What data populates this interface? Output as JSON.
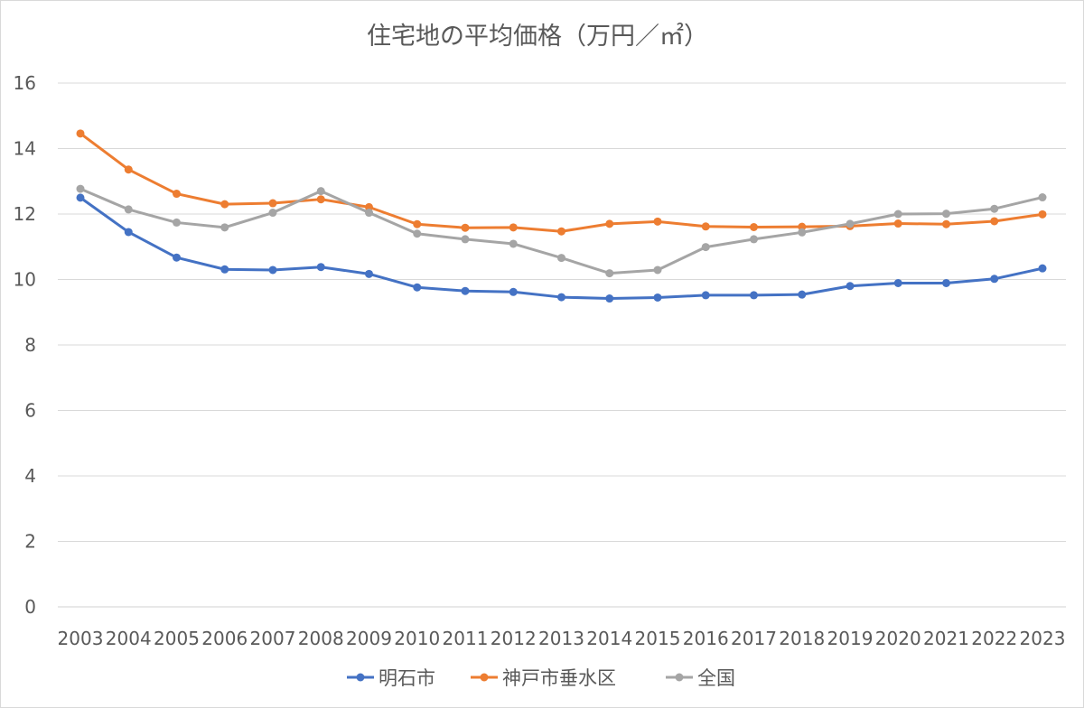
{
  "chart_data": {
    "type": "line",
    "title": "住宅地の平均価格（万円／㎡）",
    "xlabel": "",
    "ylabel": "",
    "categories": [
      "2003",
      "2004",
      "2005",
      "2006",
      "2007",
      "2008",
      "2009",
      "2010",
      "2011",
      "2012",
      "2013",
      "2014",
      "2015",
      "2016",
      "2017",
      "2018",
      "2019",
      "2020",
      "2021",
      "2022",
      "2023"
    ],
    "ylim": [
      0,
      16
    ],
    "yticks": [
      0,
      2,
      4,
      6,
      8,
      10,
      12,
      14,
      16
    ],
    "grid": true,
    "legend_position": "bottom",
    "series": [
      {
        "name": "明石市",
        "color": "#4472c4",
        "values": [
          12.5,
          11.45,
          10.67,
          10.31,
          10.29,
          10.38,
          10.17,
          9.76,
          9.65,
          9.62,
          9.46,
          9.42,
          9.45,
          9.52,
          9.52,
          9.54,
          9.8,
          9.89,
          9.89,
          10.02,
          10.34
        ]
      },
      {
        "name": "神戸市垂水区",
        "color": "#ed7d31",
        "values": [
          14.46,
          13.36,
          12.62,
          12.3,
          12.33,
          12.45,
          12.21,
          11.69,
          11.58,
          11.59,
          11.47,
          11.7,
          11.77,
          11.62,
          11.6,
          11.61,
          11.63,
          11.71,
          11.69,
          11.78,
          11.99
        ]
      },
      {
        "name": "全国",
        "color": "#a5a5a5",
        "values": [
          12.77,
          12.14,
          11.74,
          11.59,
          12.04,
          12.7,
          12.04,
          11.4,
          11.23,
          11.09,
          10.66,
          10.19,
          10.29,
          10.99,
          11.23,
          11.44,
          11.7,
          12.0,
          12.01,
          12.16,
          12.51
        ]
      }
    ]
  }
}
